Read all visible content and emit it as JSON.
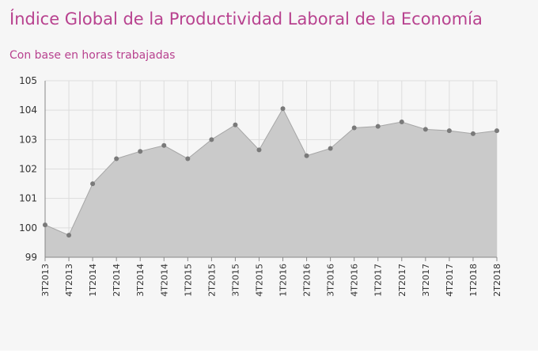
{
  "title": "Índice Global de la Productividad Laboral de la Economía",
  "subtitle": "Con base en horas trabajadas",
  "chart_data": {
    "type": "area",
    "categories": [
      "3T2013",
      "4T2013",
      "1T2014",
      "2T2014",
      "3T2014",
      "4T2014",
      "1T2015",
      "2T2015",
      "3T2015",
      "4T2015",
      "1T2016",
      "2T2016",
      "3T2016",
      "4T2016",
      "1T2017",
      "2T2017",
      "3T2017",
      "4T2017",
      "1T2018",
      "2T2018"
    ],
    "values": [
      100.1,
      99.75,
      101.5,
      102.35,
      102.6,
      102.8,
      102.35,
      103.0,
      103.5,
      102.65,
      104.05,
      102.45,
      102.7,
      103.4,
      103.45,
      103.6,
      103.35,
      103.3,
      103.2,
      103.3
    ],
    "ylim": [
      99,
      105
    ],
    "yticks": [
      99,
      100,
      101,
      102,
      103,
      104,
      105
    ],
    "grid": true,
    "colors": {
      "fill": "#cacaca",
      "line": "#a6a6a6",
      "marker": "#7a7a7a",
      "title": "#b8428f"
    }
  }
}
